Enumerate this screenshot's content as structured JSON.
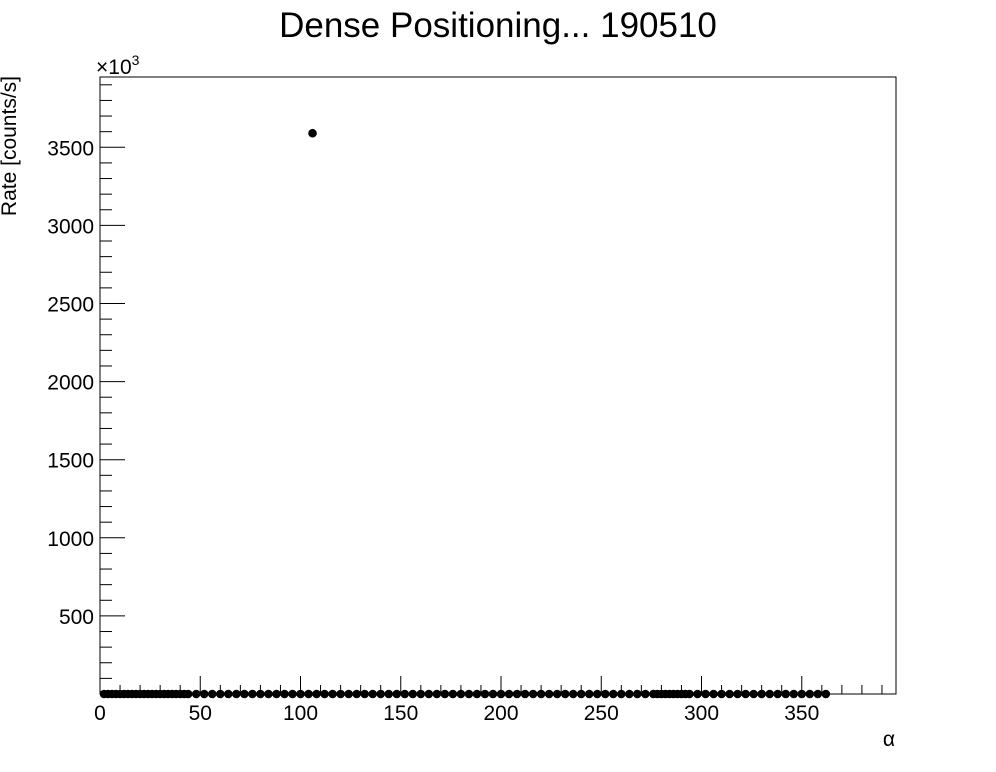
{
  "chart_data": {
    "type": "scatter",
    "title": "Dense Positioning... 190510",
    "xlabel": "α",
    "ylabel": "Rate [counts/s]",
    "y_multiplier_label": "×10",
    "y_multiplier_exponent": "3",
    "xlim": [
      0,
      397
    ],
    "ylim": [
      0,
      3950
    ],
    "x_ticks": [
      0,
      50,
      100,
      150,
      200,
      250,
      300,
      350
    ],
    "x_tick_labels": [
      "0",
      "50",
      "100",
      "150",
      "200",
      "250",
      "300",
      "350"
    ],
    "y_ticks": [
      500,
      1000,
      1500,
      2000,
      2500,
      3000,
      3500
    ],
    "y_tick_labels": [
      "500",
      "1000",
      "1500",
      "2000",
      "2500",
      "3000",
      "3500"
    ],
    "grid": false,
    "marker_color": "#000000",
    "series": [
      {
        "x": [
          2,
          4,
          6,
          8,
          10,
          12,
          14,
          16,
          18,
          20,
          22,
          24,
          26,
          28,
          30,
          32,
          34,
          36,
          38,
          40,
          42,
          44,
          48,
          52,
          56,
          60,
          64,
          68,
          72,
          76,
          80,
          84,
          88,
          92,
          96,
          100,
          104,
          106,
          108,
          112,
          116,
          120,
          124,
          128,
          132,
          136,
          140,
          144,
          148,
          152,
          156,
          160,
          164,
          168,
          172,
          176,
          180,
          184,
          188,
          192,
          196,
          200,
          204,
          208,
          212,
          216,
          220,
          224,
          228,
          232,
          236,
          240,
          244,
          248,
          252,
          256,
          260,
          264,
          268,
          272,
          276,
          278,
          280,
          282,
          284,
          286,
          288,
          290,
          292,
          294,
          298,
          302,
          306,
          310,
          314,
          318,
          322,
          326,
          330,
          334,
          338,
          342,
          346,
          350,
          354,
          358,
          362
        ],
        "y": [
          0,
          0,
          0,
          0,
          0,
          0,
          0,
          0,
          0,
          0,
          0,
          0,
          0,
          0,
          0,
          0,
          0,
          0,
          0,
          0,
          0,
          0,
          0,
          0,
          0,
          0,
          0,
          0,
          0,
          0,
          0,
          0,
          0,
          0,
          0,
          0,
          0,
          3590,
          0,
          0,
          0,
          0,
          0,
          0,
          0,
          0,
          0,
          0,
          0,
          0,
          0,
          0,
          0,
          0,
          0,
          0,
          0,
          0,
          0,
          0,
          0,
          0,
          0,
          0,
          0,
          0,
          0,
          0,
          0,
          0,
          0,
          0,
          0,
          0,
          0,
          0,
          0,
          0,
          0,
          0,
          0,
          0,
          0,
          0,
          0,
          0,
          0,
          0,
          0,
          0,
          0,
          0,
          0,
          0,
          0,
          0,
          0,
          0,
          0,
          0,
          0,
          0,
          0,
          0,
          0,
          0,
          0
        ]
      }
    ]
  }
}
